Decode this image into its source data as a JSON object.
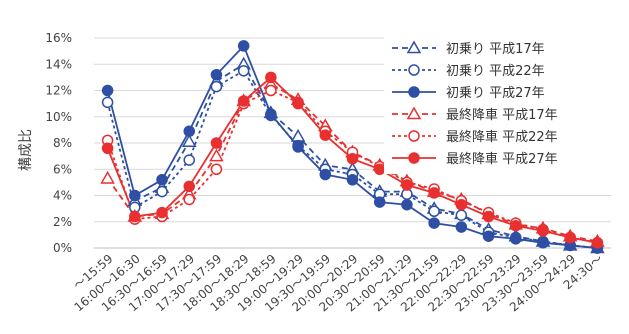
{
  "chart_data": {
    "type": "line",
    "title": "",
    "xlabel": "",
    "ylabel": "構成比",
    "ylim": [
      0,
      16
    ],
    "yticks": [
      "0%",
      "2%",
      "4%",
      "6%",
      "8%",
      "10%",
      "12%",
      "14%",
      "16%"
    ],
    "categories": [
      "～15:59",
      "16:00～16:30",
      "16:30～16:59",
      "17:00～17:29",
      "17:30～17:59",
      "18:00～18:29",
      "18:30～18:59",
      "19:00～19:29",
      "19:30～19:59",
      "20:00～20:29",
      "20:30～20:59",
      "21:00～21:29",
      "21:30～21:59",
      "22:00～22:29",
      "22:30～22:59",
      "23:00～23:29",
      "23:30～23:59",
      "24:00～24:29",
      "24:30～"
    ],
    "grid": true,
    "legend_position": "top-right",
    "series": [
      {
        "name": "初乗り 平成17年",
        "color": "#2e4fa3",
        "dash": "dashed",
        "marker": "triangle-open",
        "values": [
          null,
          3.6,
          4.6,
          8.1,
          12.7,
          14.0,
          10.3,
          8.5,
          6.3,
          6.0,
          4.3,
          4.3,
          3.0,
          2.6,
          1.4,
          0.9,
          0.5,
          0.2,
          0.0
        ]
      },
      {
        "name": "初乗り 平成22年",
        "color": "#2e4fa3",
        "dash": "dotted",
        "marker": "circle-open",
        "values": [
          11.1,
          3.1,
          4.3,
          6.7,
          12.3,
          13.5,
          10.1,
          7.8,
          6.0,
          5.6,
          4.1,
          4.1,
          2.8,
          2.5,
          1.2,
          0.8,
          0.5,
          0.2,
          0.0
        ]
      },
      {
        "name": "初乗り 平成27年",
        "color": "#2e4fa3",
        "dash": "solid",
        "marker": "circle-filled",
        "values": [
          12.0,
          4.0,
          5.2,
          8.9,
          13.2,
          15.4,
          10.2,
          7.7,
          5.6,
          5.2,
          3.5,
          3.3,
          1.9,
          1.6,
          0.9,
          0.7,
          0.4,
          0.2,
          0.0
        ]
      },
      {
        "name": "最終降車 平成17年",
        "color": "#e83030",
        "dash": "dashed",
        "marker": "triangle-open",
        "values": [
          5.3,
          2.4,
          2.6,
          4.1,
          7.0,
          11.2,
          12.5,
          11.3,
          9.3,
          7.3,
          6.3,
          5.1,
          4.3,
          3.7,
          2.6,
          1.8,
          1.5,
          0.9,
          0.5
        ]
      },
      {
        "name": "最終降車 平成22年",
        "color": "#e83030",
        "dash": "dotted",
        "marker": "circle-open",
        "values": [
          8.2,
          2.2,
          2.4,
          3.7,
          6.0,
          11.0,
          12.0,
          11.1,
          8.9,
          7.3,
          6.2,
          5.0,
          4.5,
          3.6,
          2.7,
          1.9,
          1.4,
          0.8,
          0.4
        ]
      },
      {
        "name": "最終降車 平成27年",
        "color": "#e83030",
        "dash": "solid",
        "marker": "circle-filled",
        "values": [
          7.6,
          2.4,
          2.7,
          4.7,
          8.0,
          11.2,
          13.0,
          11.0,
          8.6,
          6.8,
          6.0,
          4.8,
          4.2,
          3.3,
          2.4,
          1.7,
          1.3,
          0.8,
          0.4
        ]
      }
    ]
  }
}
